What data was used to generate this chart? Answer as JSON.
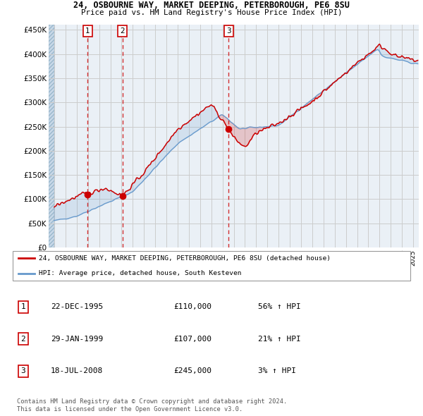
{
  "title1": "24, OSBOURNE WAY, MARKET DEEPING, PETERBOROUGH, PE6 8SU",
  "title2": "Price paid vs. HM Land Registry's House Price Index (HPI)",
  "ylabel_ticks": [
    "£0",
    "£50K",
    "£100K",
    "£150K",
    "£200K",
    "£250K",
    "£300K",
    "£350K",
    "£400K",
    "£450K"
  ],
  "ytick_values": [
    0,
    50000,
    100000,
    150000,
    200000,
    250000,
    300000,
    350000,
    400000,
    450000
  ],
  "xlim_start": 1992.5,
  "xlim_end": 2025.5,
  "ylim_min": 0,
  "ylim_max": 460000,
  "sale_dates": [
    1995.97,
    1999.08,
    2008.54
  ],
  "sale_prices": [
    110000,
    107000,
    245000
  ],
  "sale_labels": [
    "1",
    "2",
    "3"
  ],
  "red_line_color": "#cc0000",
  "blue_line_color": "#6699cc",
  "dashed_line_color": "#cc0000",
  "hatch_color": "#c8d8e8",
  "grid_color": "#cccccc",
  "plot_bg_color": "#eaf0f6",
  "legend_line1": "24, OSBOURNE WAY, MARKET DEEPING, PETERBOROUGH, PE6 8SU (detached house)",
  "legend_line2": "HPI: Average price, detached house, South Kesteven",
  "table_entries": [
    {
      "num": "1",
      "date": "22-DEC-1995",
      "price": "£110,000",
      "change": "56% ↑ HPI"
    },
    {
      "num": "2",
      "date": "29-JAN-1999",
      "price": "£107,000",
      "change": "21% ↑ HPI"
    },
    {
      "num": "3",
      "date": "18-JUL-2008",
      "price": "£245,000",
      "change": "3% ↑ HPI"
    }
  ],
  "footer1": "Contains HM Land Registry data © Crown copyright and database right 2024.",
  "footer2": "This data is licensed under the Open Government Licence v3.0."
}
